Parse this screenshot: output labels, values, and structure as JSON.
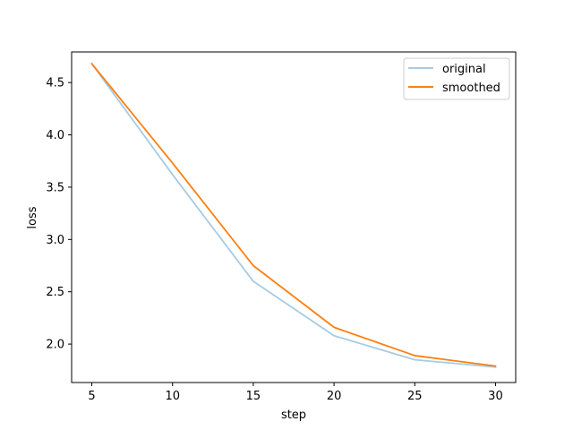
{
  "chart_data": {
    "type": "line",
    "xlabel": "step",
    "ylabel": "loss",
    "xlim": [
      3.75,
      31.25
    ],
    "ylim": [
      1.6325,
      4.7925
    ],
    "x_ticks": [
      5,
      10,
      15,
      20,
      25,
      30
    ],
    "y_ticks": [
      2.0,
      2.5,
      3.0,
      3.5,
      4.0,
      4.5
    ],
    "y_tick_labels": [
      "2.0",
      "2.5",
      "3.0",
      "3.5",
      "4.0",
      "4.5"
    ],
    "grid": false,
    "legend_position": "top-right",
    "x": [
      5,
      10,
      15,
      20,
      25,
      30
    ],
    "series": [
      {
        "name": "original",
        "color": "#a6cbe3",
        "values": [
          4.68,
          3.62,
          2.6,
          2.08,
          1.85,
          1.78
        ]
      },
      {
        "name": "smoothed",
        "color": "#ff7f0e",
        "values": [
          4.68,
          3.73,
          2.75,
          2.16,
          1.89,
          1.79
        ]
      }
    ]
  }
}
